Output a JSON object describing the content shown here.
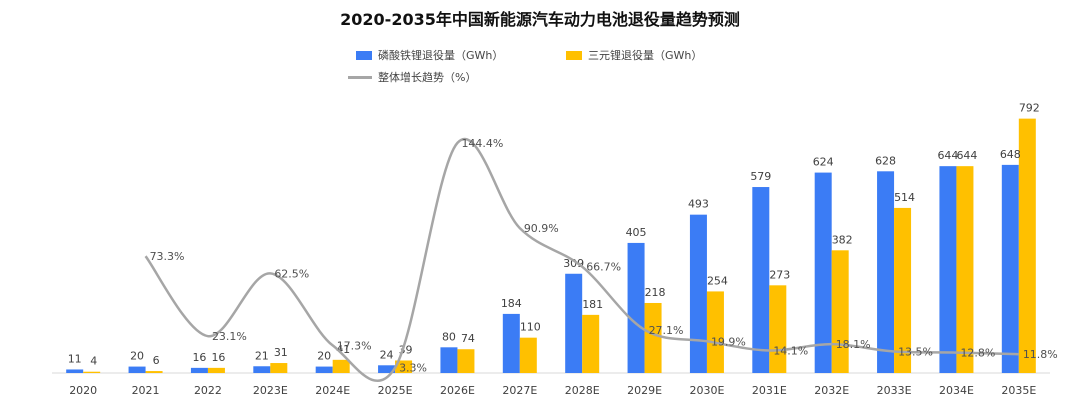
{
  "chart_data": {
    "type": "bar",
    "title": "2020-2035年中国新能源汽车动力电池退役量趋势预测",
    "categories": [
      "2020",
      "2021",
      "2022",
      "2023E",
      "2024E",
      "2025E",
      "2026E",
      "2027E",
      "2028E",
      "2029E",
      "2030E",
      "2031E",
      "2032E",
      "2033E",
      "2034E",
      "2035E"
    ],
    "series": [
      {
        "name": "磷酸铁锂退役量（GWh）",
        "type": "bar",
        "color": "#3b7cf5",
        "values": [
          11,
          20,
          16,
          21,
          20,
          24,
          80,
          184,
          309,
          405,
          493,
          579,
          624,
          628,
          644,
          648
        ]
      },
      {
        "name": "三元锂退役量（GWh）",
        "type": "bar",
        "color": "#ffc000",
        "values": [
          4,
          6,
          16,
          31,
          41,
          39,
          74,
          110,
          181,
          218,
          254,
          273,
          382,
          514,
          644,
          792
        ]
      },
      {
        "name": "整体增长趋势（%）",
        "type": "line",
        "color": "#a6a6a6",
        "values": [
          null,
          73.3,
          23.1,
          62.5,
          17.3,
          3.3,
          144.4,
          90.9,
          66.7,
          27.1,
          19.9,
          14.1,
          18.1,
          13.5,
          12.8,
          11.8
        ],
        "labels": [
          "",
          "73.3%",
          "23.1%",
          "62.5%",
          "17.3%",
          "3.3%",
          "144.4%",
          "90.9%",
          "66.7%",
          "27.1%",
          "19.9%",
          "14.1%",
          "18.1%",
          "13.5%",
          "12.8%",
          "11.8%"
        ]
      }
    ],
    "ylim": [
      0,
      850
    ],
    "y2lim": [
      0,
      160
    ],
    "grid": false,
    "legend_position": "top-center"
  }
}
